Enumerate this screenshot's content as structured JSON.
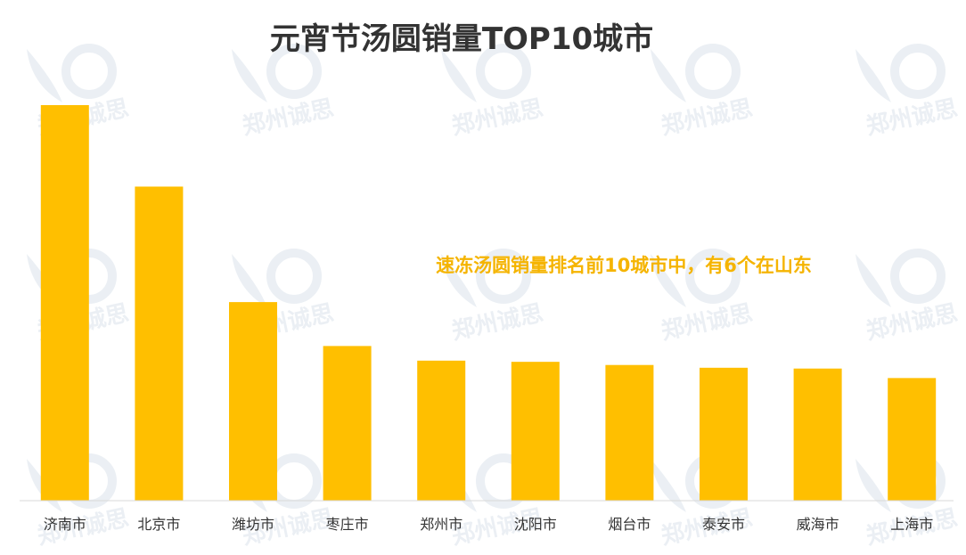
{
  "colors": {
    "bar": "#FFBF00",
    "annotation": "#F5B400",
    "axis": "#d9d9d9",
    "title": "#333333",
    "tick": "#333333",
    "watermark": "#e9eef3"
  },
  "watermark": {
    "text": "郑州诚思",
    "icon": "logo-icon"
  },
  "chart_data": {
    "type": "bar",
    "title": "元宵节汤圆销量TOP10城市",
    "xlabel": "",
    "ylabel": "",
    "categories": [
      "济南市",
      "北京市",
      "潍坊市",
      "枣庄市",
      "郑州市",
      "沈阳市",
      "烟台市",
      "泰安市",
      "威海市",
      "上海市"
    ],
    "values": [
      100,
      79.4,
      50.2,
      39.1,
      35.4,
      35.1,
      34.3,
      33.6,
      33.4,
      31.0
    ],
    "ylim": [
      0,
      100
    ],
    "grid": false,
    "legend": "none",
    "annotation": "速冻汤圆销量排名前10城市中，有6个在山东"
  }
}
